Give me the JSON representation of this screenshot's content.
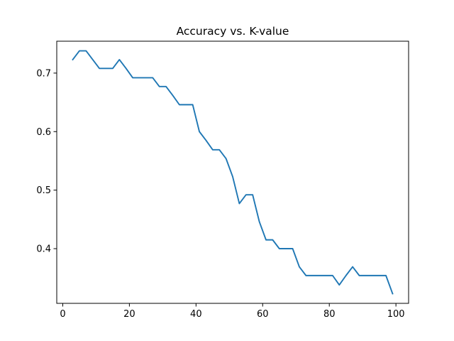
{
  "chart_data": {
    "type": "line",
    "title": "Accuracy vs. K-value",
    "xlabel": "",
    "ylabel": "",
    "xlim": [
      -1.8,
      103.8
    ],
    "ylim": [
      0.3065,
      0.7545
    ],
    "x_ticks": [
      0,
      20,
      40,
      60,
      80,
      100
    ],
    "y_ticks": [
      0.4,
      0.5,
      0.6,
      0.7
    ],
    "x_tick_labels": [
      "0",
      "20",
      "40",
      "60",
      "80",
      "100"
    ],
    "y_tick_labels": [
      "0.4",
      "0.5",
      "0.6",
      "0.7"
    ],
    "grid": false,
    "legend": "none",
    "series": [
      {
        "color": "#1f77b4",
        "x": [
          3,
          5,
          7,
          9,
          11,
          13,
          15,
          17,
          19,
          21,
          23,
          25,
          27,
          29,
          31,
          33,
          35,
          37,
          39,
          41,
          43,
          45,
          47,
          49,
          51,
          53,
          55,
          57,
          59,
          61,
          63,
          65,
          67,
          69,
          71,
          73,
          75,
          77,
          79,
          81,
          83,
          85,
          87,
          89,
          91,
          93,
          95,
          97,
          99
        ],
        "y": [
          0.723,
          0.738,
          0.738,
          0.723,
          0.708,
          0.708,
          0.708,
          0.723,
          0.708,
          0.692,
          0.692,
          0.692,
          0.692,
          0.677,
          0.677,
          0.662,
          0.646,
          0.646,
          0.646,
          0.6,
          0.585,
          0.569,
          0.569,
          0.554,
          0.523,
          0.477,
          0.492,
          0.492,
          0.446,
          0.415,
          0.415,
          0.4,
          0.4,
          0.4,
          0.369,
          0.354,
          0.354,
          0.354,
          0.354,
          0.354,
          0.338,
          0.354,
          0.369,
          0.354,
          0.354,
          0.354,
          0.354,
          0.354,
          0.323
        ]
      }
    ]
  }
}
